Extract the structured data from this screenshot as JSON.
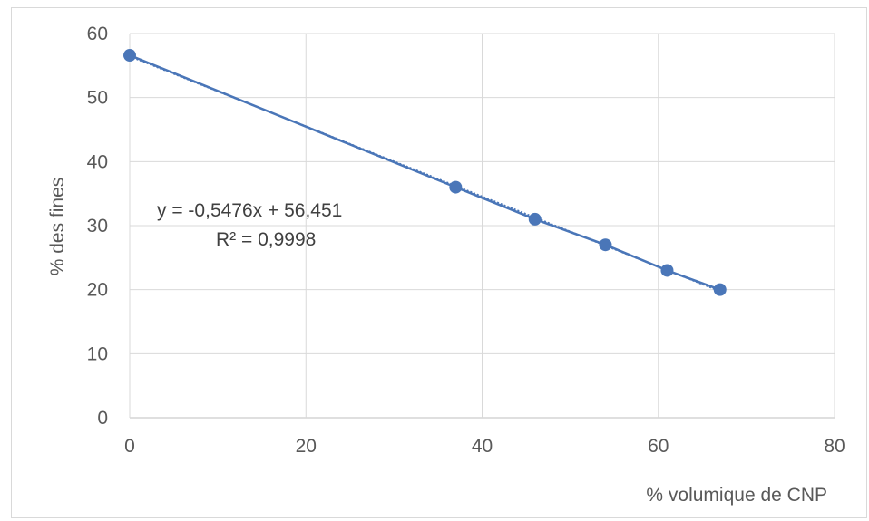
{
  "chart_data": {
    "type": "scatter",
    "xlabel": "% volumique de CNP",
    "ylabel": "% des fines",
    "xlim": [
      0,
      80
    ],
    "ylim": [
      0,
      60
    ],
    "xticks": [
      "0",
      "20",
      "40",
      "60",
      "80"
    ],
    "yticks": [
      "0",
      "10",
      "20",
      "30",
      "40",
      "50",
      "60"
    ],
    "grid": true,
    "series": [
      {
        "x": [
          0,
          37,
          46,
          54,
          61,
          67
        ],
        "y": [
          56.6,
          36,
          31,
          27,
          23,
          20
        ],
        "color": "#4a76b8",
        "line": true
      }
    ],
    "trendline": {
      "slope": -0.5476,
      "intercept": 56.451,
      "color": "#4a76b8",
      "equation": "y = -0,5476x + 56,451",
      "r2": "R² = 0,9998"
    }
  }
}
